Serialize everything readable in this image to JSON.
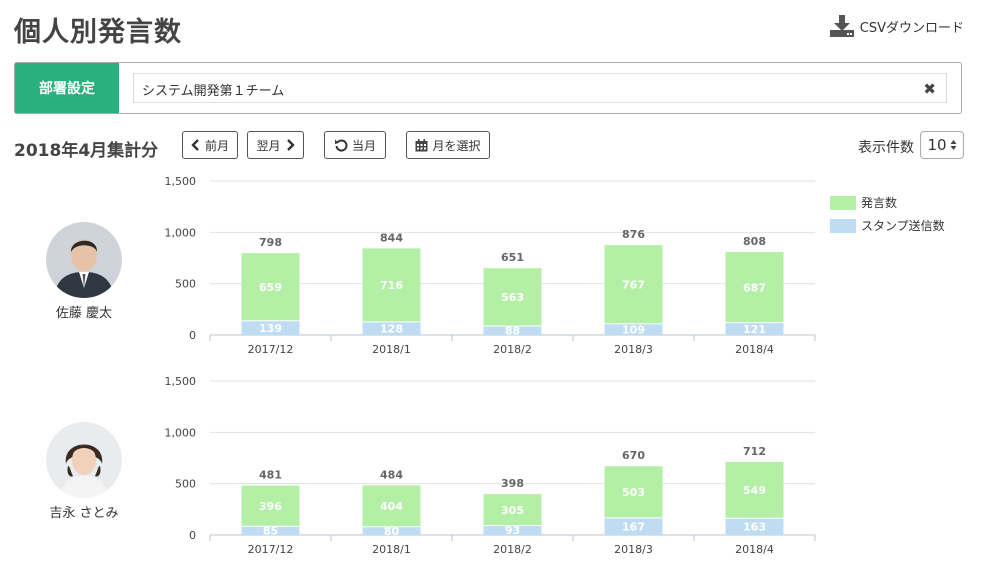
{
  "page": {
    "title": "個人別発言数",
    "csv_label": "CSVダウンロード",
    "department": {
      "label": "部署設定",
      "value": "システム開発第１チーム",
      "clear_icon": "✖"
    },
    "period_title": "2018年4月集計分",
    "buttons": {
      "prev": "前月",
      "next": "翌月",
      "current": "当月",
      "select_month": "月を選択"
    },
    "display_count": {
      "label": "表示件数",
      "value": "10"
    }
  },
  "icons": [
    "download-icon",
    "chevron-left-icon",
    "chevron-right-icon",
    "undo-icon",
    "calendar-icon",
    "close-icon",
    "sort-icon"
  ],
  "colors": {
    "accent": "#2aaf7f",
    "remarks": "#b3f0a6",
    "stamps": "#bfdcf5"
  },
  "legend": [
    "発言数",
    "スタンプ送信数"
  ],
  "users": [
    {
      "name": "佐藤 慶太"
    },
    {
      "name": "吉永 さとみ"
    }
  ],
  "chart_data": [
    {
      "type": "bar",
      "stacked": true,
      "categories": [
        "2017/12",
        "2018/1",
        "2018/2",
        "2018/3",
        "2018/4"
      ],
      "series": [
        {
          "name": "発言数",
          "values": [
            659,
            716,
            563,
            767,
            687
          ]
        },
        {
          "name": "スタンプ送信数",
          "values": [
            139,
            128,
            88,
            109,
            121
          ]
        }
      ],
      "totals": [
        798,
        844,
        651,
        876,
        808
      ],
      "yticks": [
        "1,500",
        "1,000",
        "500",
        "0"
      ],
      "ylim": [
        0,
        1500
      ],
      "grid": true,
      "legend_position": "right"
    },
    {
      "type": "bar",
      "stacked": true,
      "categories": [
        "2017/12",
        "2018/1",
        "2018/2",
        "2018/3",
        "2018/4"
      ],
      "series": [
        {
          "name": "発言数",
          "values": [
            396,
            404,
            305,
            503,
            549
          ]
        },
        {
          "name": "スタンプ送信数",
          "values": [
            85,
            80,
            93,
            167,
            163
          ]
        }
      ],
      "totals": [
        481,
        484,
        398,
        670,
        712
      ],
      "yticks": [
        "1,500",
        "1,000",
        "500",
        "0"
      ],
      "ylim": [
        0,
        1500
      ],
      "grid": true,
      "legend_position": "right"
    }
  ]
}
